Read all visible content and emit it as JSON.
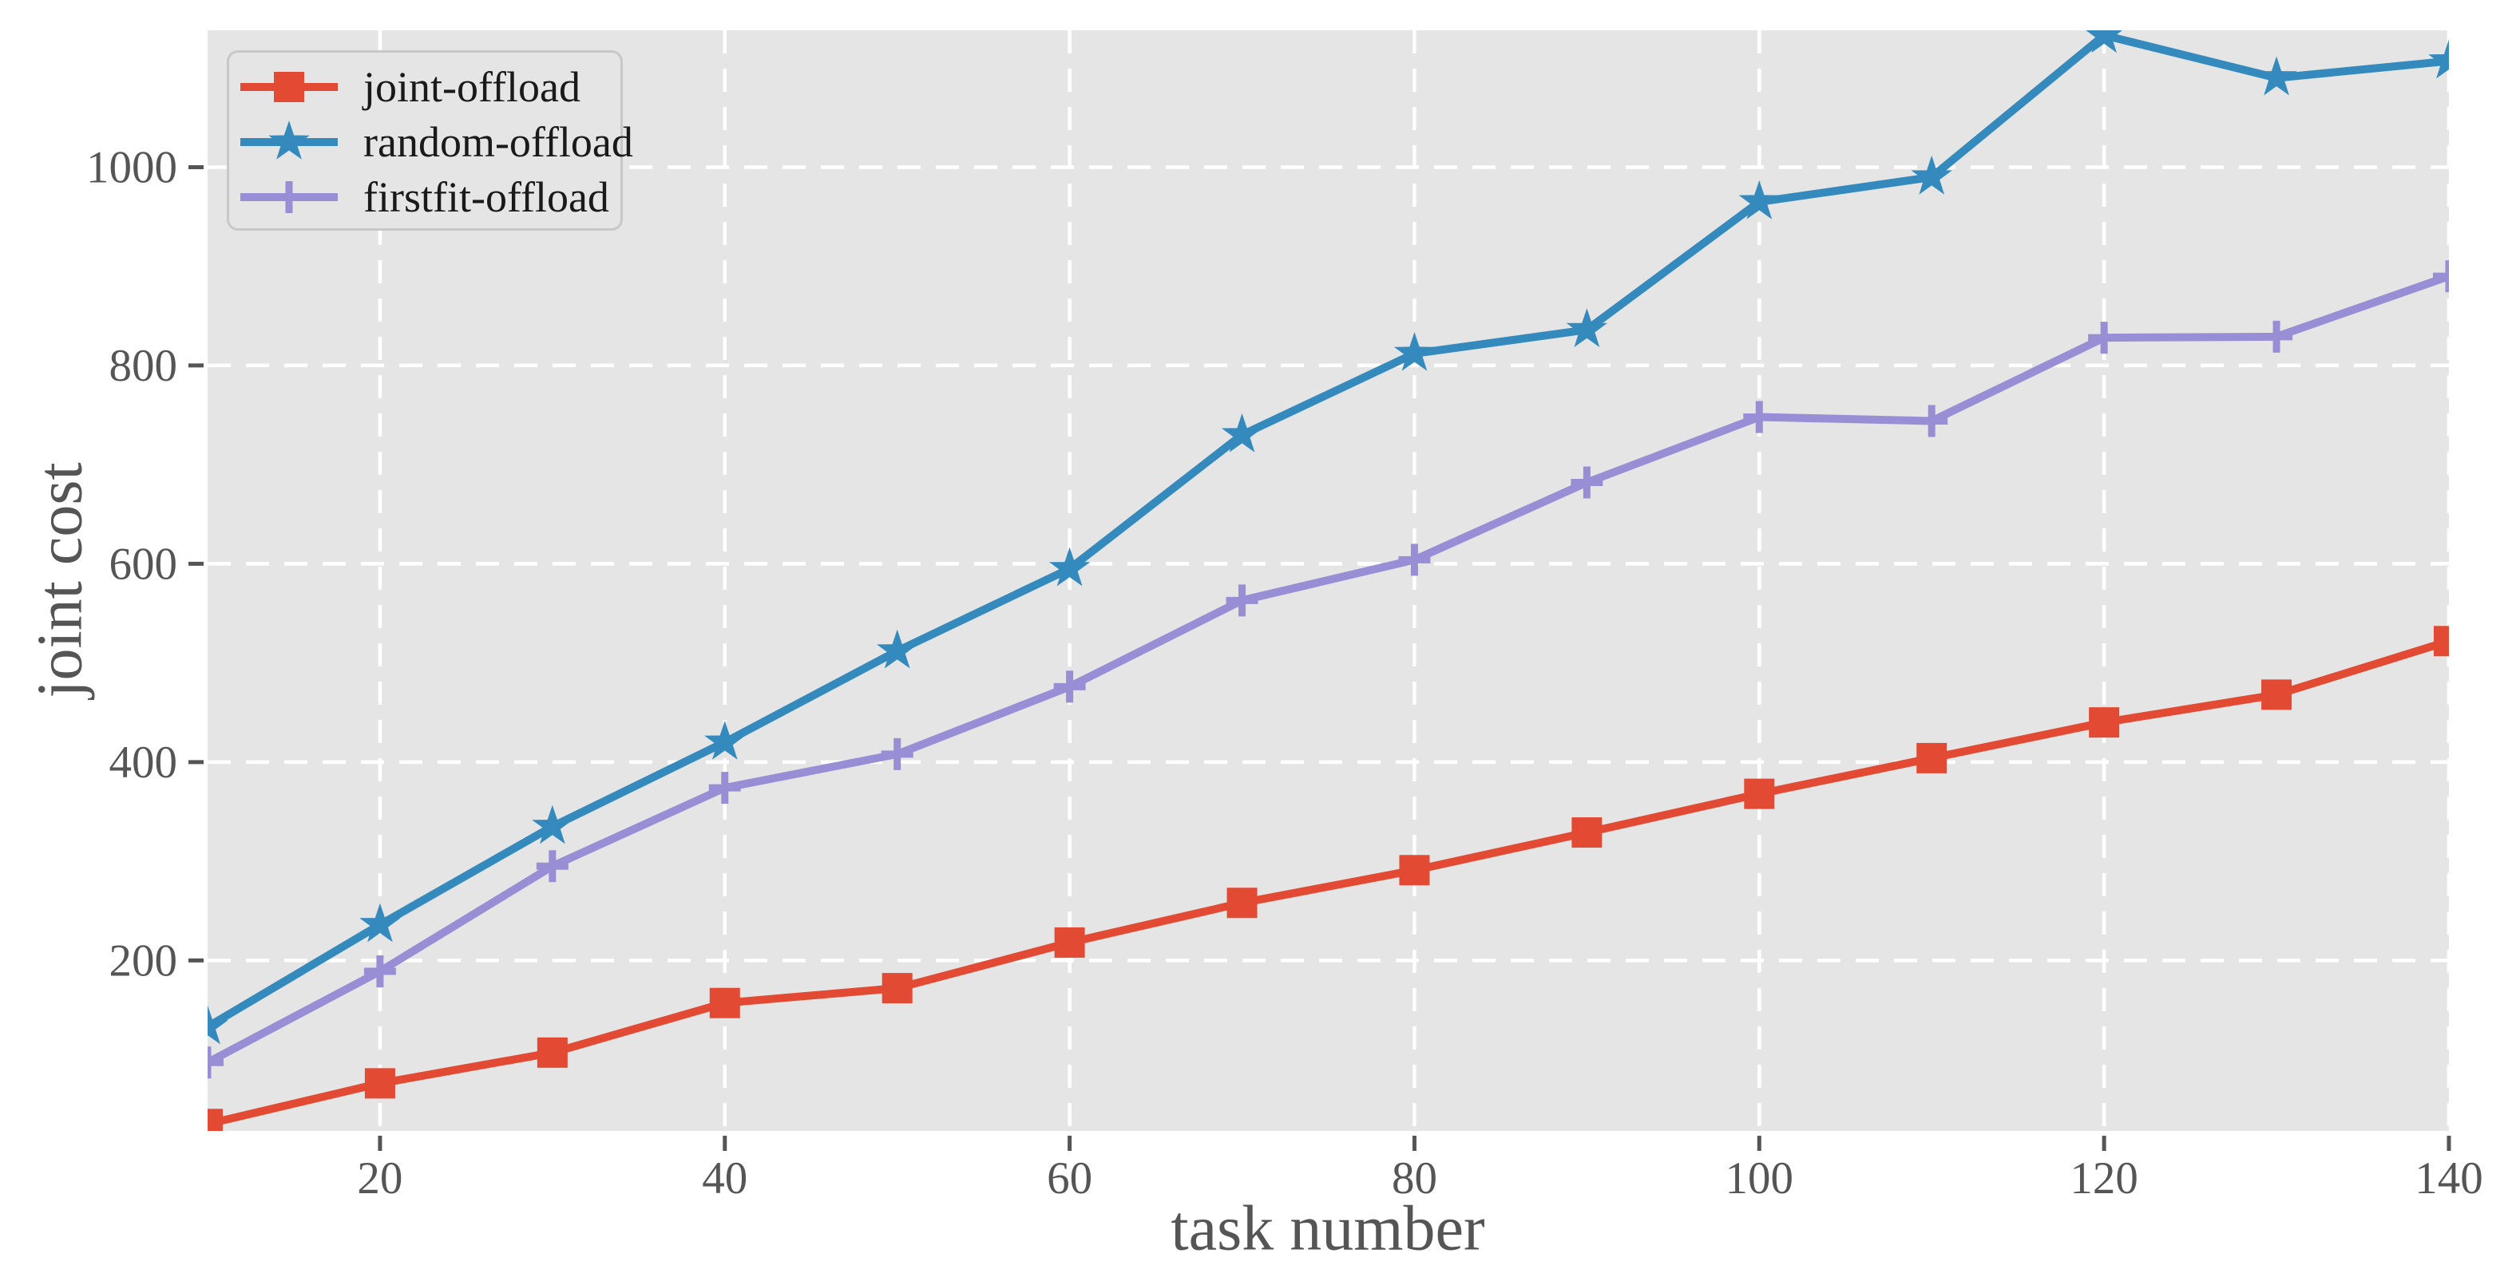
{
  "chart_data": {
    "type": "line",
    "title": "",
    "xlabel": "task number",
    "ylabel": "joint cost",
    "x": [
      10,
      20,
      30,
      40,
      50,
      60,
      70,
      80,
      90,
      100,
      110,
      120,
      130,
      140
    ],
    "xticks": [
      20,
      40,
      60,
      80,
      100,
      120,
      140
    ],
    "yticks": [
      200,
      400,
      600,
      800,
      1000
    ],
    "xlim": [
      10,
      140
    ],
    "ylim": [
      28,
      1138
    ],
    "grid": true,
    "grid_style": "white-dashed",
    "legend_position": "upper-left",
    "series": [
      {
        "name": "joint-offload",
        "color": "#E24A33",
        "marker": "square",
        "values": [
          35,
          76,
          107,
          157,
          172,
          218,
          258,
          291,
          329,
          368,
          404,
          440,
          468,
          522
        ]
      },
      {
        "name": "random-offload",
        "color": "#348ABD",
        "marker": "star",
        "values": [
          133,
          236,
          335,
          420,
          512,
          595,
          730,
          812,
          836,
          965,
          990,
          1133,
          1090,
          1107
        ]
      },
      {
        "name": "firstfit-offload",
        "color": "#988ED5",
        "marker": "plus",
        "values": [
          97,
          189,
          295,
          374,
          408,
          476,
          563,
          604,
          682,
          748,
          744,
          828,
          829,
          890
        ]
      }
    ],
    "colors": {
      "plot_background": "#E5E5E5",
      "grid": "#FFFFFF",
      "tick_text": "#555555",
      "axis_label_text": "#555555",
      "legend_text": "#1a1a1a",
      "legend_border": "#c8c8c8",
      "tick_mark": "#555555"
    }
  }
}
